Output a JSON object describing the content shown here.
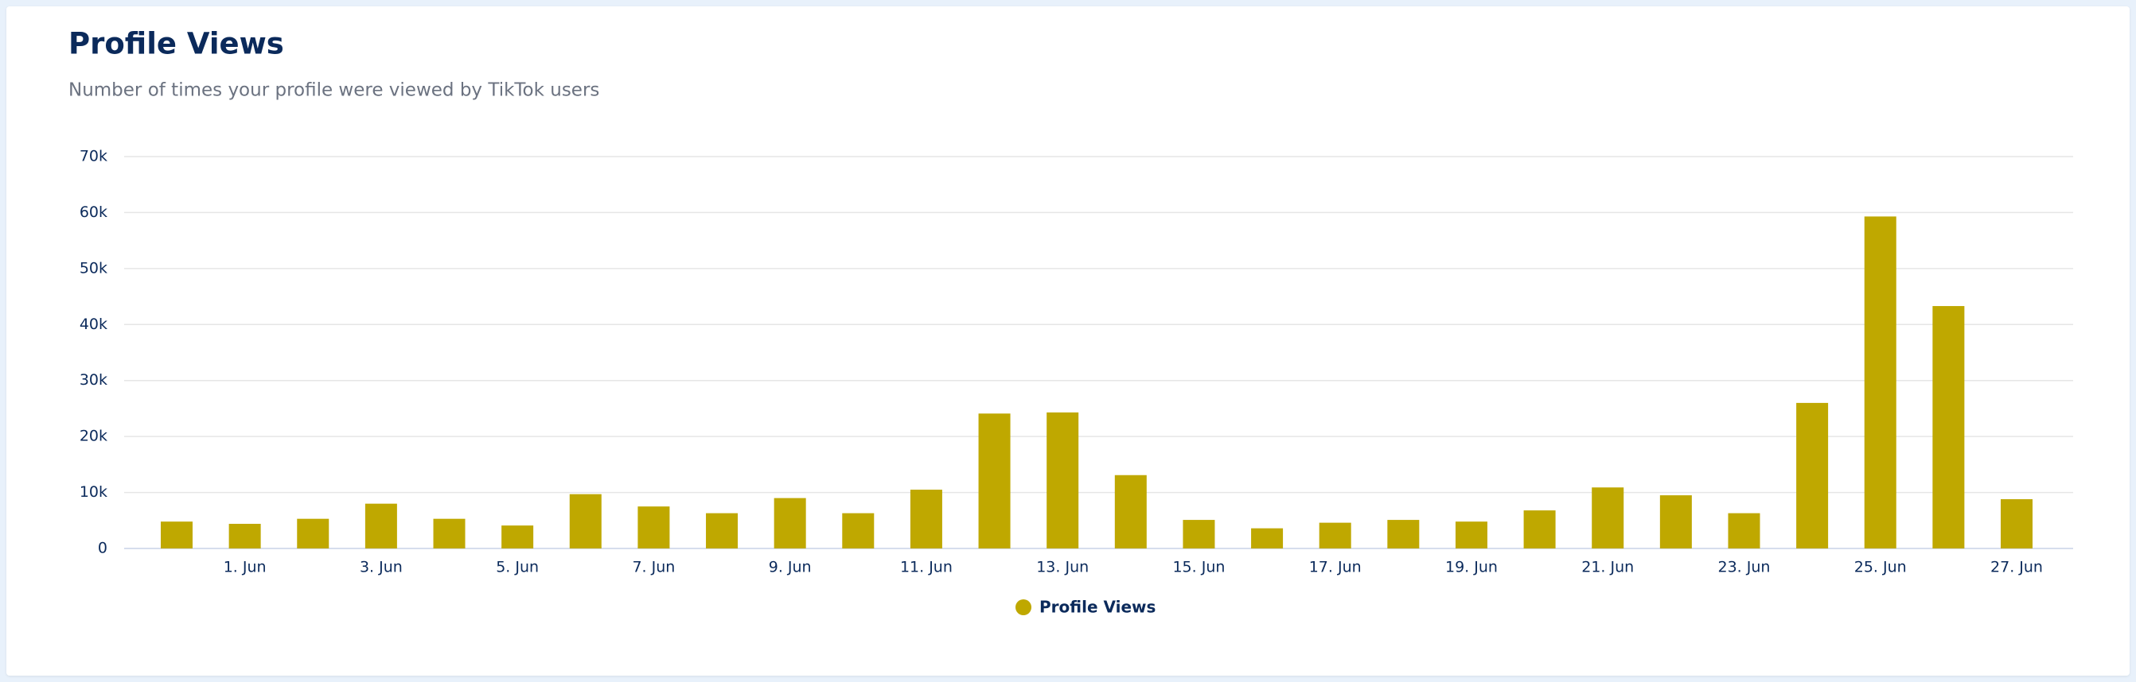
{
  "chart_data": {
    "type": "bar",
    "title": "Profile Views",
    "subtitle": "Number of times your profile were viewed by TikTok users",
    "categories": [
      null,
      "1. Jun",
      null,
      "3. Jun",
      null,
      "5. Jun",
      null,
      "7. Jun",
      null,
      "9. Jun",
      null,
      "11. Jun",
      null,
      "13. Jun",
      null,
      "15. Jun",
      null,
      "17. Jun",
      null,
      "19. Jun",
      null,
      "21. Jun",
      null,
      "23. Jun",
      null,
      "25. Jun",
      null,
      "27. Jun"
    ],
    "series": [
      {
        "name": "Profile Views",
        "color": "#bfa800",
        "values": [
          4800,
          4400,
          5300,
          8000,
          5300,
          4100,
          9700,
          7500,
          6300,
          9000,
          6300,
          10500,
          24100,
          24300,
          13100,
          5100,
          3600,
          4600,
          5100,
          4800,
          6800,
          10900,
          9500,
          6300,
          26000,
          59300,
          43300,
          8800
        ]
      }
    ],
    "ylim": [
      0,
      70000
    ],
    "yticks": [
      0,
      {
        "value": 10000,
        "label": "10k"
      },
      {
        "value": 20000,
        "label": "20k"
      },
      {
        "value": 30000,
        "label": "30k"
      },
      {
        "value": 40000,
        "label": "40k"
      },
      {
        "value": 50000,
        "label": "50k"
      },
      {
        "value": 60000,
        "label": "60k"
      },
      {
        "value": 70000,
        "label": "70k"
      }
    ],
    "grid": true
  }
}
